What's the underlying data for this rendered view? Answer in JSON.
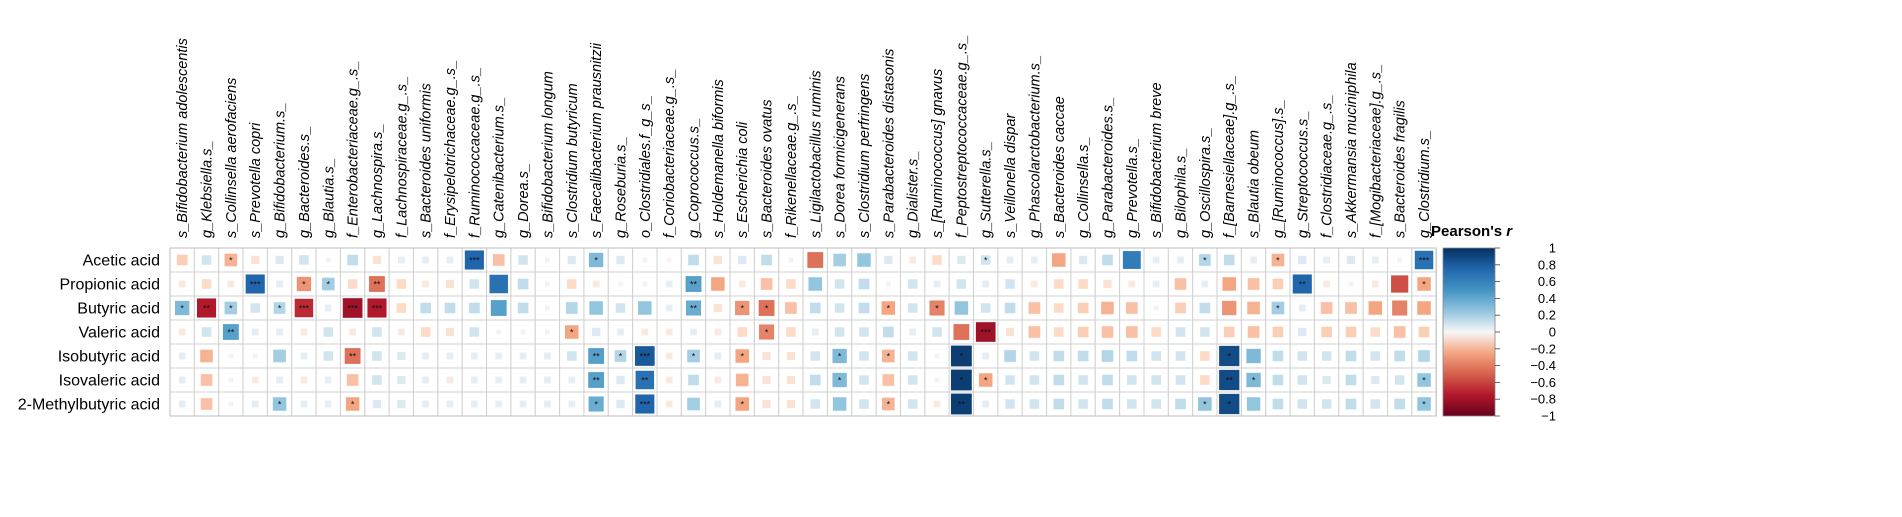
{
  "chart_data": {
    "type": "heatmap",
    "legend": {
      "title": "Pearson's r",
      "title_italic_part": "r",
      "range": [
        -1,
        1
      ],
      "ticks": [
        "1",
        "0.8",
        "0.6",
        "0.4",
        "0.2",
        "0",
        "−0.2",
        "−0.4",
        "−0.6",
        "−0.8",
        "−1"
      ]
    },
    "colors": {
      "negative": "#67001f",
      "mid": "#f7f7f7",
      "positive": "#053061"
    },
    "columns": [
      "s_Bifidobacterium adolescentis",
      "g_Klebsiella.s_",
      "s_Collinsella aerofaciens",
      "s_Prevotella copri",
      "g_Bifidobacterium.s_",
      "g_Bacteroides.s_",
      "g_Blautia.s_",
      "f_Enterobacteriaceae.g_.s_",
      "g_Lachnospira.s_",
      "f_Lachnospiraceae.g_.s_",
      "s_Bacteroides uniformis",
      "f_Erysipelotrichaceae.g_.s_",
      "f_Ruminococcaceae.g_.s_",
      "g_Catenibacterium.s_",
      "g_Dorea.s_",
      "s_Bifidobacterium longum",
      "s_Clostridium butyricum",
      "s_Faecalibacterium prausnitzii",
      "g_Roseburia.s_",
      "o_Clostridiales.f_g_s_",
      "f_Coriobacteriaceae.g_.s_",
      "g_Coprococcus.s_",
      "s_Holdemanella biformis",
      "s_Escherichia coli",
      "s_Bacteroides ovatus",
      "f_Rikenellaceae.g_.s_",
      "s_Ligilactobacillus ruminis",
      "s_Dorea formicigenerans",
      "s_Clostridium perfringens",
      "s_Parabacteroides distasonis",
      "g_Dialister.s_",
      "s_[Ruminococcus] gnavus",
      "f_Peptostreptococcaceae.g_.s_",
      "g_Sutterella.s_",
      "s_Veillonella dispar",
      "g_Phascolarctobacterium.s_",
      "s_Bacteroides caccae",
      "g_Collinsella.s_",
      "g_Parabacteroides.s_",
      "g_Prevotella.s_",
      "s_Bifidobacterium breve",
      "g_Bilophila.s_",
      "g_Oscillospira.s_",
      "f_[Barnesiellaceae].g_.s_",
      "s_Blautia obeum",
      "g_[Ruminococcus].s_",
      "g_Streptococcus.s_",
      "f_Clostridiaceae.g_.s_",
      "s_Akkermansia muciniphila",
      "f_[Mogibacteriaceae].g_.s_",
      "s_Bacteroides fragilis",
      "g_Clostridium.s_"
    ],
    "rows": [
      "Acetic  acid",
      "Propionic  acid",
      "Butyric  acid",
      "Valeric  acid",
      "Isobutyric  acid",
      "Isovaleric  acid",
      "2-Methylbutyric  acid"
    ],
    "values": [
      [
        -0.25,
        0.2,
        -0.35,
        -0.15,
        0.15,
        0.2,
        0.05,
        0.25,
        -0.15,
        0.1,
        0.1,
        0.1,
        0.8,
        -0.3,
        0.2,
        0.05,
        0.15,
        0.45,
        0.15,
        0.05,
        -0.05,
        0.25,
        -0.15,
        0.15,
        0.25,
        0.05,
        -0.55,
        0.35,
        0.4,
        0.15,
        -0.1,
        -0.2,
        0.15,
        0.2,
        0.1,
        0.1,
        -0.4,
        0.15,
        0.25,
        0.7,
        0.1,
        0.1,
        0.3,
        0.25,
        0.1,
        -0.35,
        0.15,
        0.1,
        0.15,
        0.1,
        0.05,
        0.75
      ],
      [
        -0.1,
        -0.2,
        -0.1,
        0.8,
        0.1,
        -0.45,
        0.35,
        -0.2,
        -0.55,
        -0.2,
        -0.1,
        -0.15,
        0.2,
        0.75,
        0.25,
        0.05,
        -0.2,
        -0.1,
        -0.05,
        0.05,
        0.1,
        0.55,
        -0.4,
        -0.1,
        -0.3,
        -0.2,
        0.4,
        0.2,
        0.25,
        0.05,
        0.2,
        0.1,
        0.2,
        0.1,
        0.2,
        -0.1,
        -0.2,
        -0.2,
        -0.15,
        -0.1,
        0.1,
        -0.3,
        0.1,
        -0.4,
        -0.3,
        -0.25,
        0.8,
        -0.1,
        -0.05,
        -0.1,
        -0.65,
        -0.4
      ],
      [
        0.45,
        -0.8,
        0.35,
        0.2,
        0.3,
        -0.75,
        0.1,
        -0.85,
        -0.8,
        -0.2,
        0.25,
        0.25,
        0.25,
        0.55,
        0.25,
        0.05,
        0.3,
        0.4,
        0.2,
        0.4,
        0.1,
        0.5,
        -0.15,
        -0.45,
        -0.55,
        -0.3,
        0.25,
        0.2,
        0.25,
        -0.4,
        0.2,
        -0.5,
        0.4,
        0.2,
        0.25,
        -0.3,
        -0.2,
        -0.25,
        -0.35,
        -0.3,
        0.05,
        -0.25,
        0.25,
        -0.45,
        -0.35,
        0.35,
        0.1,
        -0.3,
        -0.3,
        -0.4,
        -0.5,
        -0.4
      ],
      [
        -0.1,
        0.2,
        0.55,
        0.1,
        0.1,
        -0.1,
        0.2,
        -0.1,
        0.2,
        -0.1,
        -0.2,
        -0.15,
        0.2,
        0.05,
        0.05,
        0.05,
        -0.4,
        0.15,
        0.1,
        -0.1,
        -0.1,
        0.1,
        -0.1,
        -0.2,
        -0.5,
        -0.2,
        0.1,
        0.2,
        0.2,
        0.25,
        0.1,
        0.2,
        -0.55,
        -0.85,
        -0.15,
        -0.3,
        -0.2,
        -0.25,
        -0.3,
        -0.3,
        -0.2,
        0.2,
        0.2,
        -0.25,
        -0.3,
        -0.25,
        0.15,
        -0.25,
        -0.25,
        -0.2,
        -0.3,
        -0.25
      ],
      [
        0.1,
        -0.35,
        0.05,
        0.05,
        0.35,
        0.1,
        0.2,
        -0.55,
        0.2,
        0.15,
        0.1,
        0.1,
        0.1,
        0.1,
        0.1,
        0.1,
        0.2,
        0.55,
        0.3,
        0.85,
        -0.1,
        0.35,
        0.1,
        -0.4,
        -0.15,
        -0.15,
        0.2,
        0.45,
        0.2,
        -0.35,
        0.2,
        0.05,
        0.95,
        0.1,
        0.3,
        0.2,
        0.25,
        0.25,
        0.3,
        0.25,
        0.2,
        0.2,
        -0.2,
        0.9,
        0.45,
        0.25,
        0.2,
        0.2,
        0.25,
        0.2,
        0.25,
        0.3
      ],
      [
        0.1,
        -0.3,
        0.05,
        -0.1,
        0.1,
        -0.1,
        0.1,
        -0.3,
        0.2,
        0.15,
        0.1,
        -0.1,
        0.1,
        0.1,
        0.1,
        0.1,
        0.1,
        0.55,
        0.15,
        0.75,
        -0.1,
        0.25,
        -0.1,
        -0.35,
        -0.15,
        -0.15,
        0.25,
        0.45,
        0.2,
        -0.3,
        0.2,
        -0.05,
        0.95,
        -0.4,
        0.2,
        0.2,
        0.25,
        0.2,
        0.25,
        0.2,
        0.2,
        0.2,
        -0.2,
        0.9,
        0.45,
        0.25,
        0.2,
        0.15,
        0.25,
        0.15,
        0.2,
        0.4
      ],
      [
        0.1,
        -0.3,
        0.05,
        0.1,
        0.4,
        0.1,
        0.1,
        -0.4,
        0.15,
        0.15,
        0.1,
        0.1,
        0.1,
        0.1,
        0.1,
        0.1,
        0.1,
        0.5,
        0.15,
        0.8,
        -0.1,
        0.35,
        0.1,
        -0.4,
        -0.15,
        -0.15,
        0.2,
        0.4,
        0.2,
        -0.35,
        0.2,
        -0.1,
        0.95,
        0.1,
        0.2,
        0.2,
        0.25,
        0.2,
        0.25,
        0.2,
        0.2,
        0.25,
        0.4,
        0.9,
        0.4,
        0.25,
        0.2,
        0.2,
        0.25,
        0.2,
        0.25,
        0.4
      ]
    ],
    "stars": [
      [
        null,
        null,
        "*",
        null,
        null,
        null,
        null,
        null,
        null,
        null,
        null,
        null,
        "***",
        null,
        null,
        null,
        null,
        "*",
        null,
        null,
        null,
        null,
        null,
        null,
        null,
        null,
        null,
        null,
        null,
        null,
        null,
        null,
        null,
        "*",
        null,
        null,
        null,
        null,
        null,
        null,
        null,
        null,
        "*",
        null,
        null,
        "*",
        null,
        null,
        null,
        null,
        null,
        "***"
      ],
      [
        null,
        null,
        null,
        "***",
        null,
        "*",
        "*",
        null,
        "**",
        null,
        null,
        null,
        null,
        null,
        null,
        null,
        null,
        null,
        null,
        null,
        null,
        "**",
        null,
        null,
        null,
        null,
        null,
        null,
        null,
        null,
        null,
        null,
        null,
        null,
        null,
        null,
        null,
        null,
        null,
        null,
        null,
        null,
        null,
        null,
        null,
        null,
        "**",
        null,
        null,
        null,
        null,
        "*"
      ],
      [
        "*",
        "**",
        "*",
        null,
        "*",
        "***",
        null,
        "***",
        "***",
        null,
        null,
        null,
        null,
        null,
        null,
        null,
        null,
        null,
        null,
        null,
        null,
        "**",
        null,
        "*",
        "*",
        null,
        null,
        null,
        null,
        "*",
        null,
        "*",
        null,
        null,
        null,
        null,
        null,
        null,
        null,
        null,
        null,
        null,
        null,
        null,
        null,
        "*",
        null,
        null,
        null,
        null,
        null,
        null
      ],
      [
        null,
        null,
        "**",
        null,
        null,
        null,
        null,
        null,
        null,
        null,
        null,
        null,
        null,
        null,
        null,
        null,
        "*",
        null,
        null,
        null,
        null,
        null,
        null,
        null,
        "*",
        null,
        null,
        null,
        null,
        null,
        null,
        null,
        null,
        "***",
        null,
        null,
        null,
        null,
        null,
        null,
        null,
        null,
        null,
        null,
        null,
        null,
        null,
        null,
        null,
        null,
        null,
        null
      ],
      [
        null,
        null,
        null,
        null,
        null,
        null,
        null,
        "**",
        null,
        null,
        null,
        null,
        null,
        null,
        null,
        null,
        null,
        "**",
        "*",
        "***",
        null,
        "*",
        null,
        "*",
        null,
        null,
        null,
        "*",
        null,
        "*",
        null,
        null,
        "*",
        null,
        null,
        null,
        null,
        null,
        null,
        null,
        null,
        null,
        null,
        "*",
        null,
        null,
        null,
        null,
        null,
        null,
        null,
        null
      ],
      [
        null,
        null,
        null,
        null,
        null,
        null,
        null,
        null,
        null,
        null,
        null,
        null,
        null,
        null,
        null,
        null,
        null,
        "**",
        null,
        "**",
        null,
        null,
        null,
        null,
        null,
        null,
        null,
        "*",
        null,
        null,
        null,
        null,
        "*",
        "*",
        null,
        null,
        null,
        null,
        null,
        null,
        null,
        null,
        null,
        "**",
        "*",
        null,
        null,
        null,
        null,
        null,
        null,
        "*"
      ],
      [
        null,
        null,
        null,
        null,
        "*",
        null,
        null,
        "*",
        null,
        null,
        null,
        null,
        null,
        null,
        null,
        null,
        null,
        "*",
        null,
        "***",
        null,
        null,
        null,
        "*",
        null,
        null,
        null,
        null,
        null,
        "*",
        null,
        null,
        "**",
        null,
        null,
        null,
        null,
        null,
        null,
        null,
        null,
        null,
        "*",
        "*",
        null,
        null,
        null,
        null,
        null,
        null,
        null,
        "*"
      ]
    ]
  }
}
